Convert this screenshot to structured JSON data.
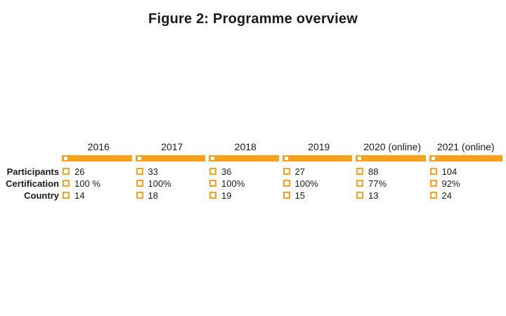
{
  "title": "Figure 2: Programme overview",
  "colors": {
    "accent_orange": "#f7a11c",
    "text_dark": "#1a1a1a",
    "background": "#ffffff"
  },
  "chart_data": {
    "type": "table",
    "title": "Figure 2: Programme overview",
    "categories": [
      "2016",
      "2017",
      "2018",
      "2019",
      "2020 (online)",
      "2021 (online)"
    ],
    "rows": [
      {
        "label": "Participants",
        "values": [
          "26",
          "33",
          "36",
          "27",
          "88",
          "104"
        ]
      },
      {
        "label": "Certification",
        "values": [
          "100 %",
          "100%",
          "100%",
          "100%",
          "77%",
          "92%"
        ]
      },
      {
        "label": "Country",
        "values": [
          "14",
          "18",
          "19",
          "15",
          "13",
          "24"
        ]
      }
    ],
    "legend_position": "none",
    "grid": false,
    "notes": "Each year column headed by an orange timeline bar with a small hollow square marker at its left end; every value is preceded by a small hollow orange square."
  }
}
